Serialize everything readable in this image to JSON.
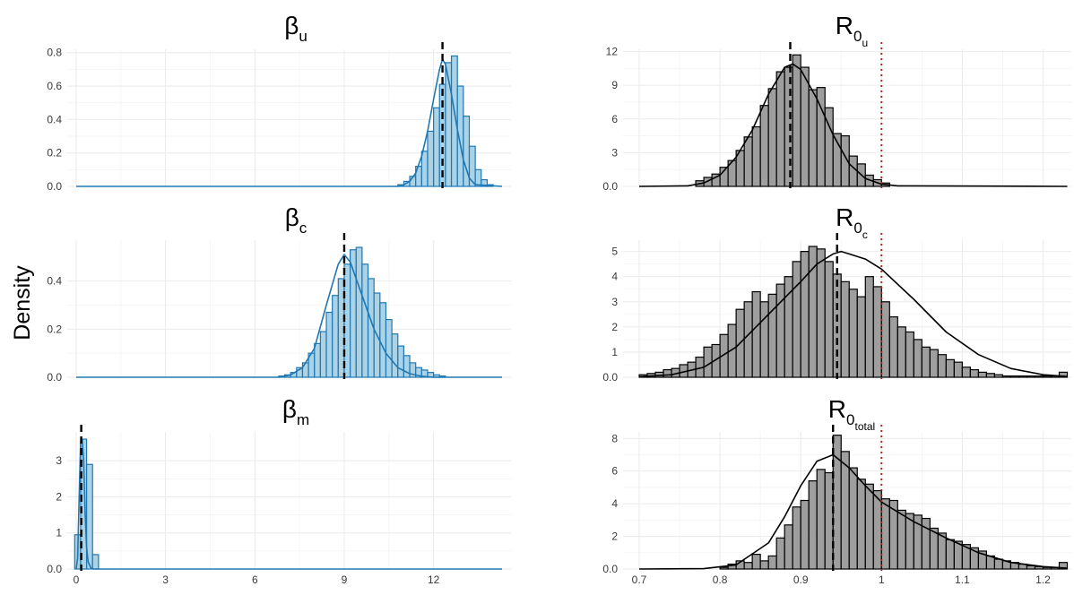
{
  "ylabel": "Density",
  "colors": {
    "beta_fill": "#9ecae1",
    "beta_line": "#1f78b4",
    "r0_fill": "#999999",
    "r0_line": "#000000",
    "mean_line": "#000000",
    "threshold_line": "#a52a2a",
    "grid": "#ebebeb"
  },
  "chart_data": [
    {
      "type": "histogram+density",
      "panel": "beta_u",
      "title": {
        "symbol": "β",
        "sub": "u"
      },
      "xlim": [
        -0.3,
        14.6
      ],
      "ylim": [
        0,
        0.82
      ],
      "xticks": [
        0,
        3,
        6,
        9,
        12
      ],
      "yticks": [
        0.0,
        0.2,
        0.4,
        0.6,
        0.8
      ],
      "show_xtick_labels": false,
      "mean_line": 12.3,
      "density": {
        "x": [
          0,
          10.8,
          11.0,
          11.2,
          11.4,
          11.6,
          11.8,
          12.0,
          12.2,
          12.3,
          12.4,
          12.6,
          12.8,
          13.0,
          13.2,
          13.4,
          14.3
        ],
        "y": [
          0,
          0,
          0.01,
          0.03,
          0.08,
          0.18,
          0.33,
          0.52,
          0.7,
          0.76,
          0.73,
          0.55,
          0.34,
          0.16,
          0.05,
          0.01,
          0
        ]
      },
      "bins": {
        "start": 10.8,
        "width": 0.2,
        "values": [
          0.01,
          0.03,
          0.06,
          0.12,
          0.21,
          0.33,
          0.47,
          0.61,
          0.74,
          0.78,
          0.6,
          0.42,
          0.24,
          0.1,
          0.04,
          0.01
        ]
      }
    },
    {
      "type": "histogram+density",
      "panel": "R0_u",
      "title": {
        "symbol": "R",
        "sub": "0",
        "subsub": "u"
      },
      "xlim": [
        0.68,
        1.235
      ],
      "ylim": [
        0,
        12.2
      ],
      "xticks": [
        0.7,
        0.8,
        0.9,
        1.0,
        1.1,
        1.2
      ],
      "yticks": [
        0,
        3,
        6,
        9,
        12
      ],
      "show_xtick_labels": false,
      "mean_line": 0.887,
      "threshold_line": 1.0,
      "density": {
        "x": [
          0.7,
          0.76,
          0.78,
          0.8,
          0.82,
          0.84,
          0.86,
          0.88,
          0.89,
          0.9,
          0.92,
          0.94,
          0.96,
          0.98,
          1.0,
          1.02,
          1.23
        ],
        "y": [
          0,
          0.05,
          0.3,
          1.0,
          2.6,
          5.0,
          8.2,
          10.6,
          10.9,
          10.4,
          7.8,
          4.6,
          2.0,
          0.7,
          0.2,
          0.05,
          0
        ]
      },
      "bins": {
        "start": 0.77,
        "width": 0.01,
        "values": [
          0.5,
          0.8,
          1.1,
          1.7,
          2.3,
          3.2,
          4.4,
          5.3,
          7.2,
          8.7,
          10.2,
          10.6,
          11.7,
          10.6,
          8.6,
          8.8,
          7.0,
          4.7,
          4.5,
          2.7,
          2.0,
          1.0,
          0.6,
          0.3
        ]
      }
    },
    {
      "type": "histogram+density",
      "panel": "beta_c",
      "title": {
        "symbol": "β",
        "sub": "c"
      },
      "xlim": [
        -0.3,
        14.6
      ],
      "ylim": [
        0,
        0.57
      ],
      "xticks": [
        0,
        3,
        6,
        9,
        12
      ],
      "yticks": [
        0.0,
        0.2,
        0.4
      ],
      "show_xtick_labels": false,
      "mean_line": 9.0,
      "density": {
        "x": [
          0,
          6.8,
          7.2,
          7.6,
          8.0,
          8.4,
          8.8,
          9.0,
          9.2,
          9.6,
          10.0,
          10.4,
          10.8,
          11.2,
          11.6,
          12.0,
          14.3
        ],
        "y": [
          0,
          0,
          0.01,
          0.04,
          0.12,
          0.3,
          0.47,
          0.51,
          0.48,
          0.34,
          0.2,
          0.1,
          0.04,
          0.015,
          0.004,
          0,
          0
        ]
      },
      "bins": {
        "start": 6.8,
        "width": 0.2,
        "values": [
          0.005,
          0.01,
          0.02,
          0.04,
          0.06,
          0.1,
          0.14,
          0.19,
          0.27,
          0.34,
          0.41,
          0.47,
          0.53,
          0.54,
          0.47,
          0.41,
          0.35,
          0.31,
          0.24,
          0.18,
          0.13,
          0.09,
          0.06,
          0.04,
          0.03,
          0.02,
          0.01,
          0.005
        ]
      }
    },
    {
      "type": "histogram+density",
      "panel": "R0_c",
      "title": {
        "symbol": "R",
        "sub": "0",
        "subsub": "c"
      },
      "xlim": [
        0.68,
        1.235
      ],
      "ylim": [
        0,
        5.45
      ],
      "xticks": [
        0.7,
        0.8,
        0.9,
        1.0,
        1.1,
        1.2
      ],
      "yticks": [
        0,
        1,
        2,
        3,
        4,
        5
      ],
      "show_xtick_labels": false,
      "mean_line": 0.945,
      "threshold_line": 1.0,
      "density": {
        "x": [
          0.7,
          0.74,
          0.78,
          0.82,
          0.86,
          0.9,
          0.92,
          0.94,
          0.95,
          0.96,
          0.98,
          1.0,
          1.04,
          1.08,
          1.12,
          1.16,
          1.2,
          1.23
        ],
        "y": [
          0.02,
          0.1,
          0.4,
          1.2,
          2.5,
          3.8,
          4.5,
          4.9,
          5.0,
          4.9,
          4.7,
          4.3,
          3.1,
          1.8,
          0.9,
          0.35,
          0.1,
          0.03
        ]
      },
      "bins": {
        "start": 0.7,
        "width": 0.01,
        "values": [
          0.1,
          0.15,
          0.2,
          0.3,
          0.35,
          0.5,
          0.6,
          0.8,
          1.2,
          1.3,
          1.7,
          2.1,
          2.7,
          3.0,
          3.4,
          3.0,
          3.3,
          3.7,
          4.0,
          4.6,
          5.0,
          5.2,
          5.1,
          4.6,
          4.1,
          3.8,
          3.5,
          3.2,
          4.0,
          3.6,
          3.0,
          2.4,
          2.0,
          1.8,
          1.5,
          1.2,
          1.1,
          0.9,
          0.7,
          0.6,
          0.4,
          0.3,
          0.2,
          0.15,
          0.1,
          0.05,
          0.05,
          0.05,
          0.05,
          0.05,
          0.05,
          0.05,
          0.2
        ]
      }
    },
    {
      "type": "histogram+density",
      "panel": "beta_m",
      "title": {
        "symbol": "β",
        "sub": "m"
      },
      "xlim": [
        -0.3,
        14.6
      ],
      "ylim": [
        0,
        3.8
      ],
      "xticks": [
        0,
        3,
        6,
        9,
        12
      ],
      "yticks": [
        0,
        1,
        2,
        3
      ],
      "show_xtick_labels": true,
      "mean_line": 0.17,
      "density": {
        "x": [
          0,
          0.05,
          0.1,
          0.15,
          0.2,
          0.25,
          0.3,
          0.35,
          0.4,
          0.5,
          0.6,
          14.3
        ],
        "y": [
          0,
          0.3,
          2.0,
          3.5,
          3.6,
          3.0,
          1.6,
          0.6,
          0.2,
          0.02,
          0,
          0
        ]
      },
      "bins": {
        "start": -0.05,
        "width": 0.2,
        "values": [
          0.95,
          3.6,
          2.9,
          0.4
        ]
      }
    },
    {
      "type": "histogram+density",
      "panel": "R0_total",
      "title": {
        "symbol": "R",
        "sub": "0",
        "subsub": "total"
      },
      "xlim": [
        0.68,
        1.235
      ],
      "ylim": [
        0,
        8.4
      ],
      "xticks": [
        0.7,
        0.8,
        0.9,
        1.0,
        1.1,
        1.2
      ],
      "yticks": [
        0,
        2,
        4,
        6,
        8
      ],
      "show_xtick_labels": true,
      "mean_line": 0.94,
      "threshold_line": 1.0,
      "density": {
        "x": [
          0.7,
          0.78,
          0.82,
          0.86,
          0.88,
          0.9,
          0.92,
          0.94,
          0.96,
          0.98,
          1.0,
          1.04,
          1.08,
          1.12,
          1.16,
          1.2,
          1.23
        ],
        "y": [
          0,
          0.02,
          0.25,
          1.6,
          3.2,
          5.1,
          6.6,
          7.0,
          6.2,
          5.1,
          4.1,
          2.9,
          1.9,
          1.0,
          0.4,
          0.15,
          0.05
        ]
      },
      "bins": {
        "start": 0.8,
        "width": 0.01,
        "values": [
          0.1,
          0.3,
          0.5,
          0.4,
          0.9,
          0.5,
          0.8,
          1.9,
          2.7,
          3.8,
          4.2,
          5.4,
          6.1,
          5.9,
          8.2,
          7.2,
          6.2,
          5.5,
          5.2,
          4.8,
          4.3,
          4.2,
          3.6,
          3.4,
          3.3,
          3.1,
          2.5,
          2.2,
          1.8,
          1.7,
          1.5,
          1.3,
          1.1,
          0.8,
          0.6,
          0.5,
          0.4,
          0.3,
          0.2,
          0.15,
          0.1,
          0.1,
          0.4
        ]
      }
    }
  ]
}
